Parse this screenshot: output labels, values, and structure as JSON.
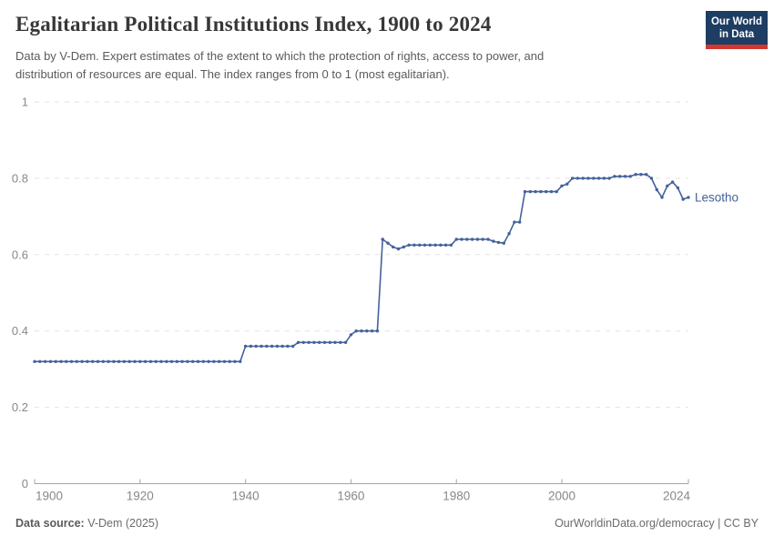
{
  "header": {
    "title": "Egalitarian Political Institutions Index, 1900 to 2024",
    "subtitle_line1": "Data by V-Dem. Expert estimates of the extent to which the protection of rights, access to power, and",
    "subtitle_line2": "distribution of resources are equal. The index ranges from 0 to 1 (most egalitarian)."
  },
  "logo": {
    "line1": "Our World",
    "line2": "in Data",
    "bg_color": "#1d3d63",
    "bar_color": "#d13832"
  },
  "footer": {
    "source_label": "Data source:",
    "source_value": " V-Dem (2025)",
    "right_text": "OurWorldinData.org/democracy | CC BY"
  },
  "chart_data": {
    "type": "line",
    "title": "Egalitarian Political Institutions Index, 1900 to 2024",
    "entity": "Lesotho",
    "end_label": "Lesotho",
    "line_color": "#44619c",
    "grid_color": "#e2e2e2",
    "axis_color": "#a5a5a5",
    "tick_text_color": "#888888",
    "xlim": [
      1900,
      2024
    ],
    "ylim": [
      0,
      1
    ],
    "x_ticks": [
      1900,
      1920,
      1940,
      1960,
      1980,
      2000,
      2024
    ],
    "y_ticks": [
      0,
      0.2,
      0.4,
      0.6,
      0.8,
      1
    ],
    "grid": "horizontal-dashed",
    "legend_position": "end-of-line",
    "markers": "point-per-year",
    "points": [
      [
        1900,
        0.32
      ],
      [
        1901,
        0.32
      ],
      [
        1902,
        0.32
      ],
      [
        1903,
        0.32
      ],
      [
        1904,
        0.32
      ],
      [
        1905,
        0.32
      ],
      [
        1906,
        0.32
      ],
      [
        1907,
        0.32
      ],
      [
        1908,
        0.32
      ],
      [
        1909,
        0.32
      ],
      [
        1910,
        0.32
      ],
      [
        1911,
        0.32
      ],
      [
        1912,
        0.32
      ],
      [
        1913,
        0.32
      ],
      [
        1914,
        0.32
      ],
      [
        1915,
        0.32
      ],
      [
        1916,
        0.32
      ],
      [
        1917,
        0.32
      ],
      [
        1918,
        0.32
      ],
      [
        1919,
        0.32
      ],
      [
        1920,
        0.32
      ],
      [
        1921,
        0.32
      ],
      [
        1922,
        0.32
      ],
      [
        1923,
        0.32
      ],
      [
        1924,
        0.32
      ],
      [
        1925,
        0.32
      ],
      [
        1926,
        0.32
      ],
      [
        1927,
        0.32
      ],
      [
        1928,
        0.32
      ],
      [
        1929,
        0.32
      ],
      [
        1930,
        0.32
      ],
      [
        1931,
        0.32
      ],
      [
        1932,
        0.32
      ],
      [
        1933,
        0.32
      ],
      [
        1934,
        0.32
      ],
      [
        1935,
        0.32
      ],
      [
        1936,
        0.32
      ],
      [
        1937,
        0.32
      ],
      [
        1938,
        0.32
      ],
      [
        1939,
        0.32
      ],
      [
        1940,
        0.36
      ],
      [
        1941,
        0.36
      ],
      [
        1942,
        0.36
      ],
      [
        1943,
        0.36
      ],
      [
        1944,
        0.36
      ],
      [
        1945,
        0.36
      ],
      [
        1946,
        0.36
      ],
      [
        1947,
        0.36
      ],
      [
        1948,
        0.36
      ],
      [
        1949,
        0.36
      ],
      [
        1950,
        0.37
      ],
      [
        1951,
        0.37
      ],
      [
        1952,
        0.37
      ],
      [
        1953,
        0.37
      ],
      [
        1954,
        0.37
      ],
      [
        1955,
        0.37
      ],
      [
        1956,
        0.37
      ],
      [
        1957,
        0.37
      ],
      [
        1958,
        0.37
      ],
      [
        1959,
        0.37
      ],
      [
        1960,
        0.39
      ],
      [
        1961,
        0.4
      ],
      [
        1962,
        0.4
      ],
      [
        1963,
        0.4
      ],
      [
        1964,
        0.4
      ],
      [
        1965,
        0.4
      ],
      [
        1966,
        0.64
      ],
      [
        1967,
        0.63
      ],
      [
        1968,
        0.62
      ],
      [
        1969,
        0.615
      ],
      [
        1970,
        0.62
      ],
      [
        1971,
        0.625
      ],
      [
        1972,
        0.625
      ],
      [
        1973,
        0.625
      ],
      [
        1974,
        0.625
      ],
      [
        1975,
        0.625
      ],
      [
        1976,
        0.625
      ],
      [
        1977,
        0.625
      ],
      [
        1978,
        0.625
      ],
      [
        1979,
        0.625
      ],
      [
        1980,
        0.64
      ],
      [
        1981,
        0.64
      ],
      [
        1982,
        0.64
      ],
      [
        1983,
        0.64
      ],
      [
        1984,
        0.64
      ],
      [
        1985,
        0.64
      ],
      [
        1986,
        0.64
      ],
      [
        1987,
        0.635
      ],
      [
        1988,
        0.632
      ],
      [
        1989,
        0.63
      ],
      [
        1990,
        0.655
      ],
      [
        1991,
        0.685
      ],
      [
        1992,
        0.685
      ],
      [
        1993,
        0.765
      ],
      [
        1994,
        0.765
      ],
      [
        1995,
        0.765
      ],
      [
        1996,
        0.765
      ],
      [
        1997,
        0.765
      ],
      [
        1998,
        0.765
      ],
      [
        1999,
        0.765
      ],
      [
        2000,
        0.78
      ],
      [
        2001,
        0.785
      ],
      [
        2002,
        0.8
      ],
      [
        2003,
        0.8
      ],
      [
        2004,
        0.8
      ],
      [
        2005,
        0.8
      ],
      [
        2006,
        0.8
      ],
      [
        2007,
        0.8
      ],
      [
        2008,
        0.8
      ],
      [
        2009,
        0.8
      ],
      [
        2010,
        0.805
      ],
      [
        2011,
        0.805
      ],
      [
        2012,
        0.805
      ],
      [
        2013,
        0.805
      ],
      [
        2014,
        0.81
      ],
      [
        2015,
        0.81
      ],
      [
        2016,
        0.81
      ],
      [
        2017,
        0.8
      ],
      [
        2018,
        0.77
      ],
      [
        2019,
        0.75
      ],
      [
        2020,
        0.78
      ],
      [
        2021,
        0.79
      ],
      [
        2022,
        0.775
      ],
      [
        2023,
        0.745
      ],
      [
        2024,
        0.75
      ]
    ]
  }
}
